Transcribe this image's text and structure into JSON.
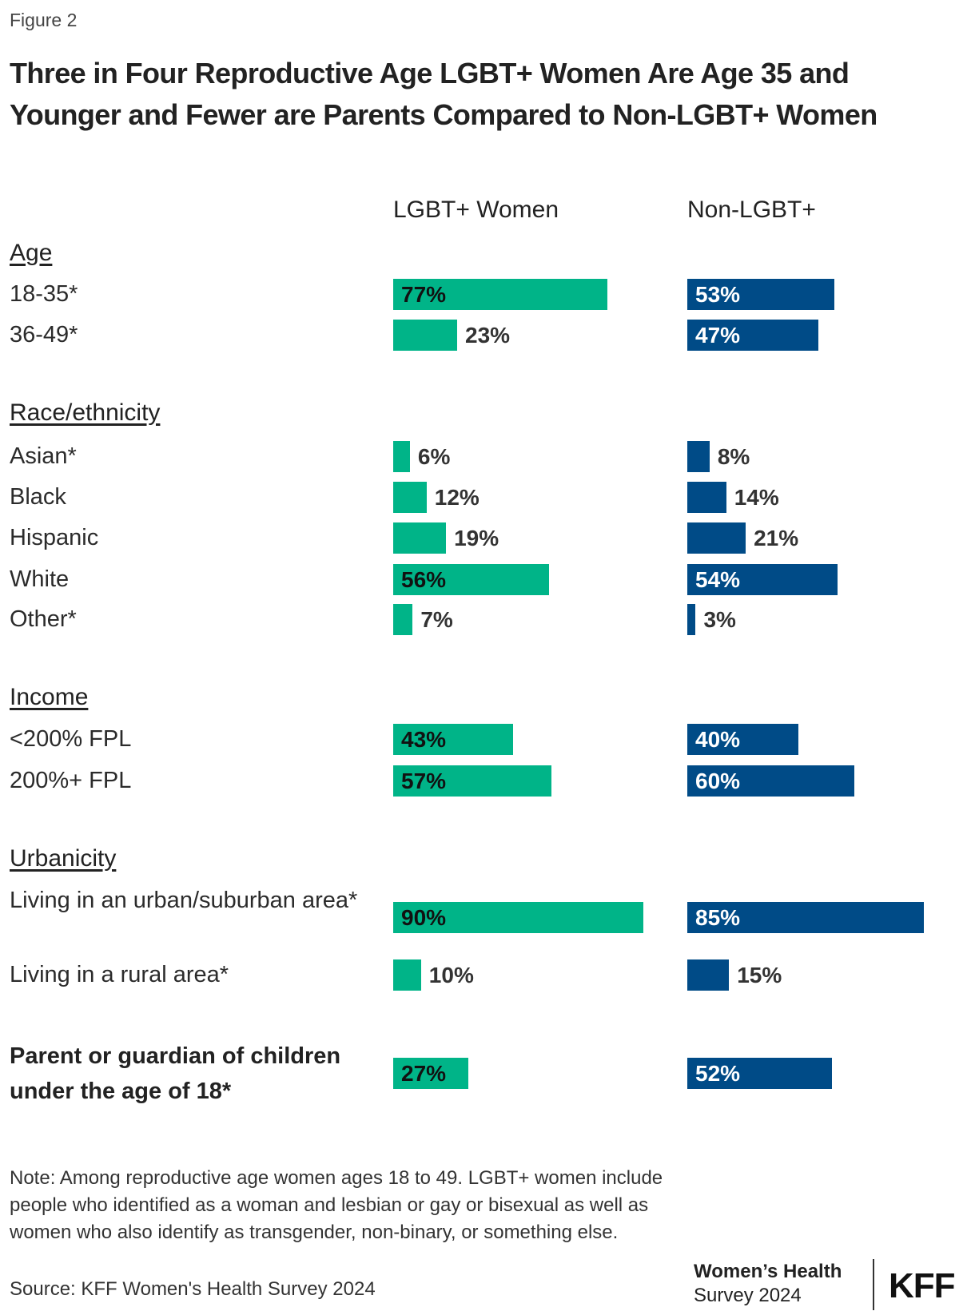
{
  "figure_label": "Figure 2",
  "title": "Three in Four Reproductive Age LGBT+ Women Are Age 35 and Younger and Fewer are Parents Compared to Non-LGBT+ Women",
  "colors": {
    "lgbt": "#00b488",
    "non_lgbt": "#004b87"
  },
  "chart_data": {
    "type": "bar",
    "orientation": "horizontal",
    "series": [
      {
        "name": "LGBT+ Women"
      },
      {
        "name": "Non-LGBT+"
      }
    ],
    "xlim": [
      0,
      100
    ],
    "sections": [
      {
        "heading": "Age",
        "rows": [
          {
            "label": "18-35*",
            "values": [
              77,
              53
            ]
          },
          {
            "label": "36-49*",
            "values": [
              23,
              47
            ]
          }
        ]
      },
      {
        "heading": "Race/ethnicity",
        "rows": [
          {
            "label": "Asian*",
            "values": [
              6,
              8
            ]
          },
          {
            "label": "Black",
            "values": [
              12,
              14
            ]
          },
          {
            "label": "Hispanic",
            "values": [
              19,
              21
            ]
          },
          {
            "label": "White",
            "values": [
              56,
              54
            ]
          },
          {
            "label": "Other*",
            "values": [
              7,
              3
            ]
          }
        ]
      },
      {
        "heading": "Income",
        "rows": [
          {
            "label": "<200% FPL",
            "values": [
              43,
              40
            ]
          },
          {
            "label": "200%+ FPL",
            "values": [
              57,
              60
            ]
          }
        ]
      },
      {
        "heading": "Urbanicity",
        "rows": [
          {
            "label": "Living in an urban/suburban area*",
            "values": [
              90,
              85
            ]
          },
          {
            "label": "Living in a rural area*",
            "values": [
              10,
              15
            ]
          }
        ]
      },
      {
        "heading": "",
        "rows": [
          {
            "label": "Parent or guardian of children under the age of 18*",
            "values": [
              27,
              52
            ],
            "bold": true
          }
        ]
      }
    ]
  },
  "note": "Note: Among reproductive age women ages 18 to 49. LGBT+ women include people who identified as a woman and lesbian or gay or bisexual as well as women who also identify as transgender, non-binary, or something else.",
  "source": "Source: KFF Women's Health Survey 2024",
  "logo": {
    "line1": "Women’s Health",
    "line2": "Survey 2024",
    "brand": "KFF"
  }
}
